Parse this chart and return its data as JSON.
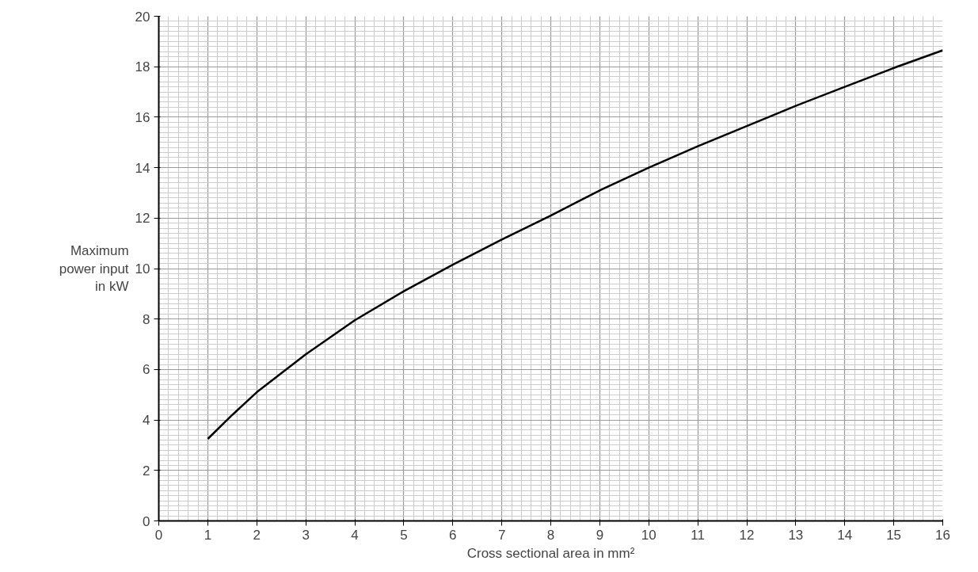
{
  "chart_data": {
    "type": "line",
    "xlabel": "Cross sectional area in mm²",
    "ylabel": "Maximum\npower input\nin kW",
    "x": [
      1,
      1.5,
      2,
      3,
      4,
      5,
      6,
      7,
      8,
      9,
      10,
      11,
      12,
      13,
      14,
      15,
      16
    ],
    "series": [
      {
        "color": "#000000",
        "values": [
          3.25,
          4.2,
          5.1,
          6.6,
          7.95,
          9.1,
          10.15,
          11.15,
          12.1,
          13.1,
          14.0,
          14.85,
          15.65,
          16.45,
          17.2,
          17.95,
          18.65
        ]
      }
    ],
    "xlim": [
      0,
      16
    ],
    "ylim": [
      0,
      20
    ],
    "xticks": [
      0,
      1,
      2,
      3,
      4,
      5,
      6,
      7,
      8,
      9,
      10,
      11,
      12,
      13,
      14,
      15,
      16
    ],
    "yticks": [
      0,
      2,
      4,
      6,
      8,
      10,
      12,
      14,
      16,
      18,
      20
    ],
    "grid": true,
    "marker": "none",
    "line_style": "solid"
  }
}
